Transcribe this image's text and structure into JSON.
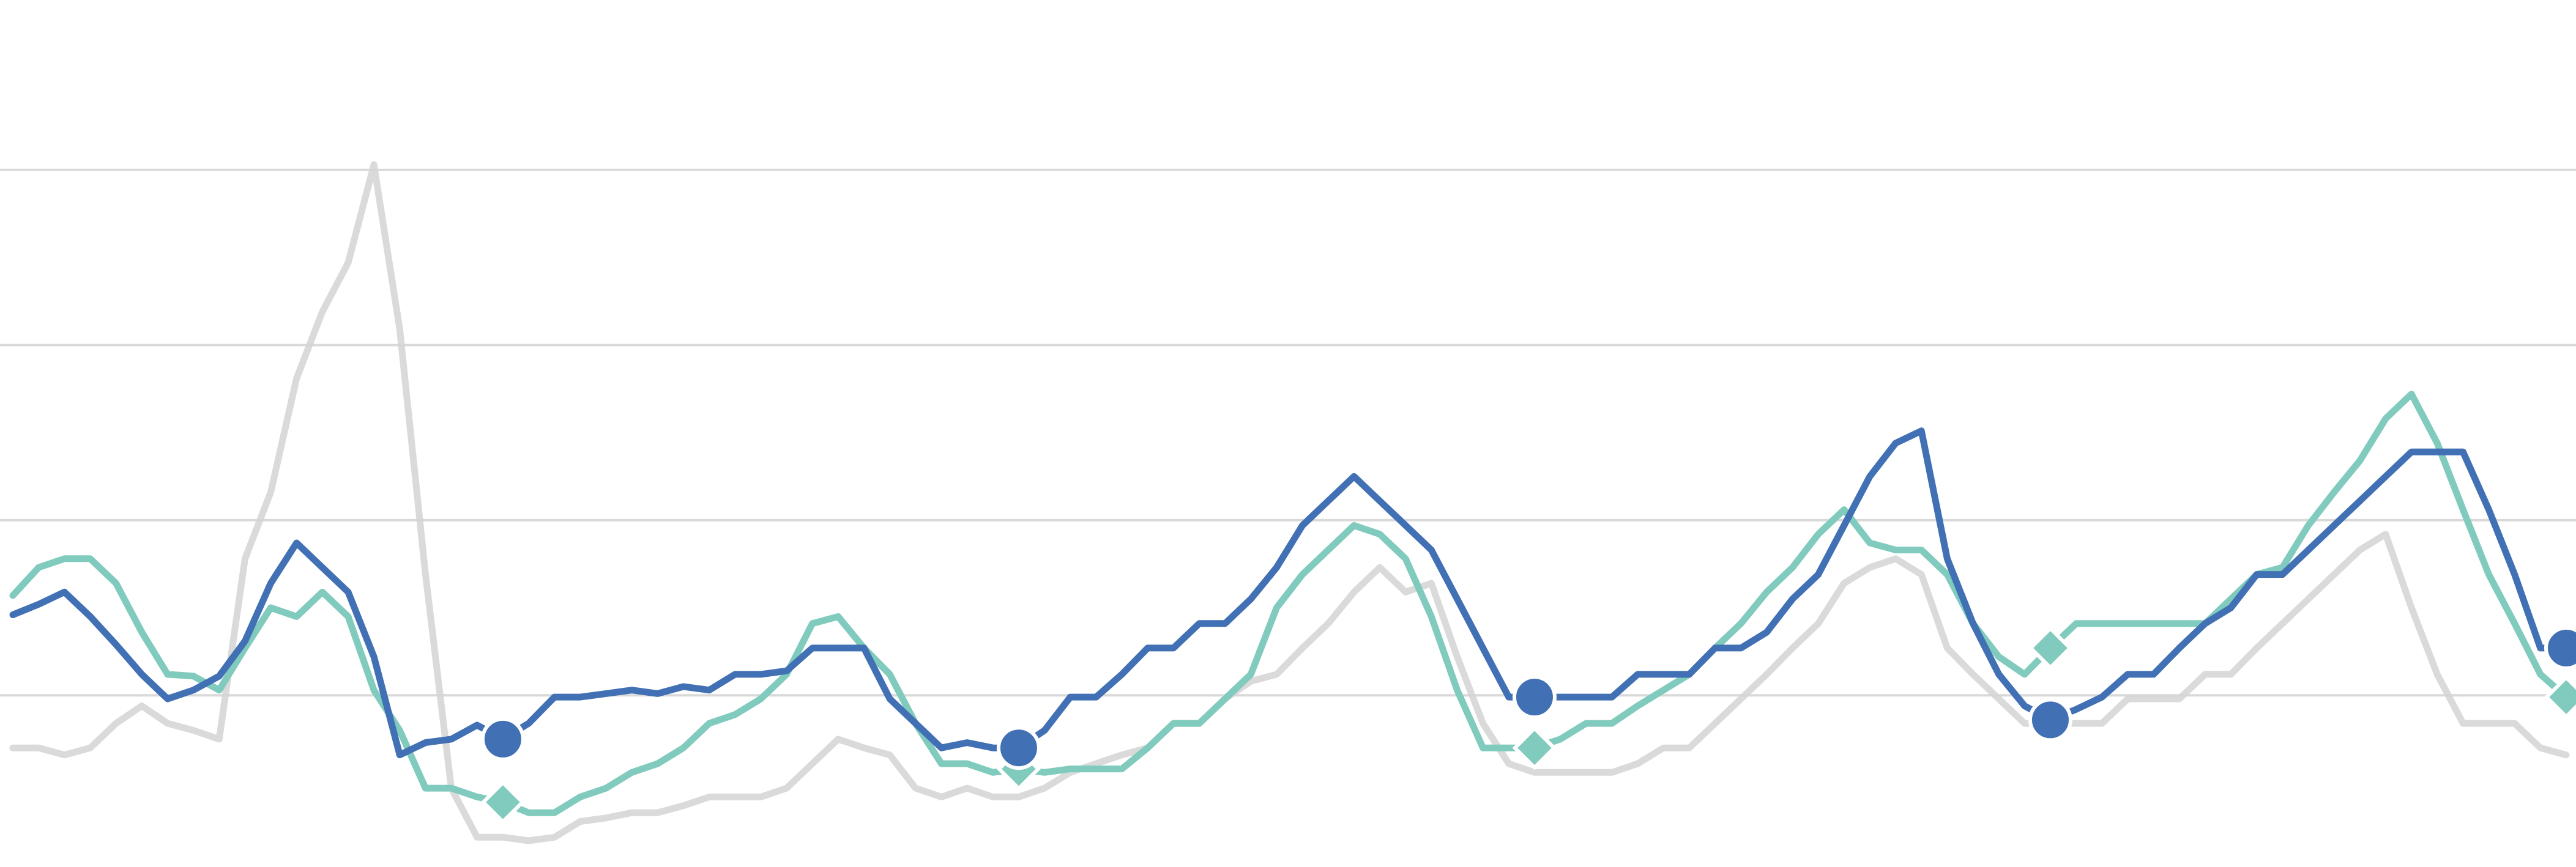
{
  "chart_data": {
    "type": "line",
    "ylim": [
      0.02,
      4.97
    ],
    "yticks": [
      1,
      2,
      3,
      4
    ],
    "grid": true,
    "series": [
      {
        "color": "#d4d4d4",
        "values": [
          0.7,
          0.7,
          0.66,
          0.7,
          0.84,
          0.94,
          0.84,
          0.8,
          0.75,
          1.78,
          2.16,
          2.81,
          3.19,
          3.47,
          4.03,
          3.09,
          1.69,
          0.47,
          0.19,
          0.19,
          0.17,
          0.19,
          0.28,
          0.3,
          0.33,
          0.33,
          0.37,
          0.42,
          0.42,
          0.42,
          0.47,
          0.61,
          0.75,
          0.7,
          0.66,
          0.47,
          0.42,
          0.47,
          0.42,
          0.42,
          0.47,
          0.56,
          0.61,
          0.66,
          0.7,
          0.84,
          0.84,
          0.98,
          1.08,
          1.12,
          1.27,
          1.41,
          1.59,
          1.73,
          1.59,
          1.64,
          1.22,
          0.84,
          0.61,
          0.56,
          0.56,
          0.56,
          0.56,
          0.61,
          0.7,
          0.7,
          0.84,
          0.98,
          1.12,
          1.27,
          1.41,
          1.64,
          1.73,
          1.78,
          1.69,
          1.27,
          1.12,
          0.98,
          0.84,
          0.84,
          0.84,
          0.84,
          0.98,
          0.98,
          0.98,
          1.12,
          1.12,
          1.27,
          1.41,
          1.55,
          1.69,
          1.83,
          1.92,
          1.5,
          1.12,
          0.84,
          0.84,
          0.84,
          0.7,
          0.66
        ]
      },
      {
        "color": "#80cbbd",
        "marker": "diamond",
        "markevery": [
          19,
          20
        ],
        "values": [
          1.57,
          1.73,
          1.78,
          1.78,
          1.64,
          1.36,
          1.12,
          1.11,
          1.03,
          1.27,
          1.5,
          1.45,
          1.59,
          1.45,
          1.03,
          0.8,
          0.47,
          0.47,
          0.42,
          0.39,
          0.33,
          0.33,
          0.42,
          0.47,
          0.56,
          0.61,
          0.7,
          0.84,
          0.89,
          0.98,
          1.12,
          1.41,
          1.45,
          1.27,
          1.12,
          0.84,
          0.61,
          0.61,
          0.56,
          0.58,
          0.56,
          0.58,
          0.58,
          0.58,
          0.7,
          0.84,
          0.84,
          0.98,
          1.12,
          1.5,
          1.69,
          1.83,
          1.97,
          1.92,
          1.78,
          1.45,
          1.03,
          0.7,
          0.7,
          0.7,
          0.75,
          0.84,
          0.84,
          0.94,
          1.03,
          1.12,
          1.27,
          1.41,
          1.59,
          1.73,
          1.92,
          2.06,
          1.87,
          1.83,
          1.83,
          1.69,
          1.41,
          1.22,
          1.12,
          1.27,
          1.41,
          1.41,
          1.41,
          1.41,
          1.41,
          1.41,
          1.55,
          1.69,
          1.73,
          1.97,
          2.16,
          2.34,
          2.58,
          2.72,
          2.44,
          2.06,
          1.69,
          1.41,
          1.12,
          0.99
        ]
      },
      {
        "color": "#4170b4",
        "marker": "circle",
        "markevery": [
          19,
          20
        ],
        "values": [
          1.46,
          1.52,
          1.59,
          1.45,
          1.29,
          1.12,
          0.98,
          1.03,
          1.11,
          1.31,
          1.64,
          1.87,
          1.73,
          1.59,
          1.22,
          0.66,
          0.73,
          0.75,
          0.83,
          0.75,
          0.84,
          0.99,
          0.99,
          1.01,
          1.03,
          1.01,
          1.05,
          1.03,
          1.12,
          1.12,
          1.14,
          1.27,
          1.27,
          1.27,
          0.98,
          0.84,
          0.7,
          0.73,
          0.7,
          0.7,
          0.8,
          0.99,
          0.99,
          1.12,
          1.27,
          1.27,
          1.41,
          1.41,
          1.55,
          1.73,
          1.97,
          2.11,
          2.25,
          2.11,
          1.97,
          1.83,
          1.55,
          1.27,
          0.99,
          0.99,
          0.99,
          0.99,
          0.99,
          1.12,
          1.12,
          1.12,
          1.27,
          1.27,
          1.36,
          1.55,
          1.69,
          1.97,
          2.25,
          2.44,
          2.51,
          1.78,
          1.41,
          1.12,
          0.94,
          0.86,
          0.92,
          0.99,
          1.12,
          1.12,
          1.27,
          1.41,
          1.5,
          1.69,
          1.69,
          1.83,
          1.97,
          2.11,
          2.25,
          2.39,
          2.39,
          2.39,
          2.06,
          1.69,
          1.27,
          1.27
        ]
      }
    ]
  }
}
